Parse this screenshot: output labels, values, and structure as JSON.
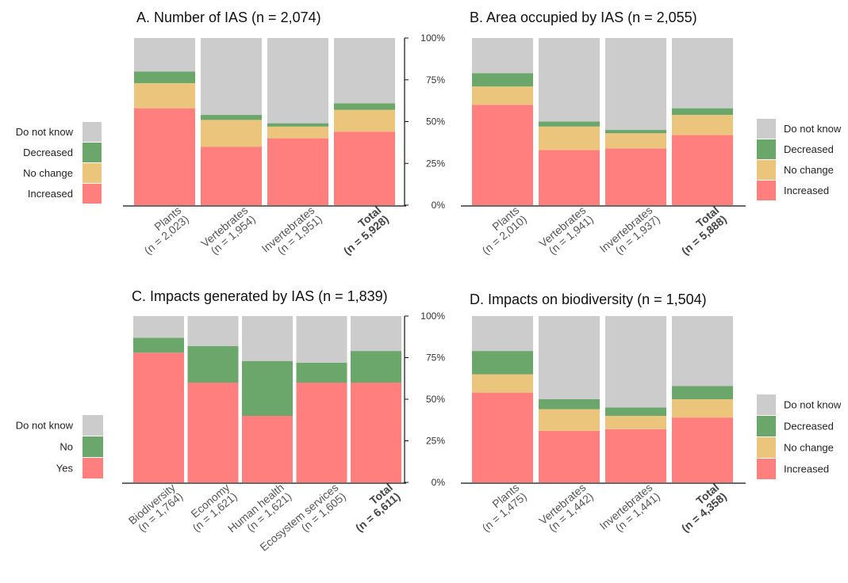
{
  "colors": {
    "Increased": "#ff7f7f",
    "No change": "#ecc57d",
    "Decreased": "#6ba76b",
    "Do not know": "#cccccc",
    "Yes": "#ff7f7f",
    "No": "#6ba76b"
  },
  "y_ticks": [
    "0%",
    "25%",
    "50%",
    "75%",
    "100%"
  ],
  "chart_data": [
    {
      "id": "A",
      "type": "bar",
      "stacked": true,
      "title": "A. Number of IAS (n = 2,074)",
      "categories": [
        "Plants\n(n = 2,023)",
        "Vertebrates\n(n = 1,954)",
        "Invertebrates\n(n = 1,951)",
        "Total\n(n = 5,928)"
      ],
      "bold_last": true,
      "ylim": [
        0,
        100
      ],
      "legend_position": "left",
      "series": [
        {
          "name": "Increased",
          "values": [
            58,
            35,
            40,
            44
          ]
        },
        {
          "name": "No change",
          "values": [
            15,
            16,
            7,
            13
          ]
        },
        {
          "name": "Decreased",
          "values": [
            7,
            3,
            2,
            4
          ]
        },
        {
          "name": "Do not know",
          "values": [
            20,
            46,
            51,
            39
          ]
        }
      ]
    },
    {
      "id": "B",
      "type": "bar",
      "stacked": true,
      "title": "B. Area occupied by IAS (n = 2,055)",
      "categories": [
        "Plants\n(n = 2,010)",
        "Vertebrates\n(n = 1,941)",
        "Invertebrates\n(n = 1,937)",
        "Total\n(n = 5,888)"
      ],
      "bold_last": true,
      "ylim": [
        0,
        100
      ],
      "legend_position": "right",
      "series": [
        {
          "name": "Increased",
          "values": [
            60,
            33,
            34,
            42
          ]
        },
        {
          "name": "No change",
          "values": [
            11,
            14,
            9,
            12
          ]
        },
        {
          "name": "Decreased",
          "values": [
            8,
            3,
            2,
            4
          ]
        },
        {
          "name": "Do not know",
          "values": [
            21,
            50,
            55,
            42
          ]
        }
      ]
    },
    {
      "id": "C",
      "type": "bar",
      "stacked": true,
      "title": "C. Impacts generated by IAS (n = 1,839)",
      "categories": [
        "Biodiversity\n(n = 1,764)",
        "Economy\n(n = 1,621)",
        "Human health\n(n = 1,621)",
        "Ecosystem services\n(n = 1,605)",
        "Total\n(n = 6,611)"
      ],
      "bold_last": true,
      "ylim": [
        0,
        100
      ],
      "legend_position": "left",
      "series": [
        {
          "name": "Yes",
          "values": [
            78,
            60,
            40,
            60,
            60
          ]
        },
        {
          "name": "No",
          "values": [
            9,
            22,
            33,
            12,
            19
          ]
        },
        {
          "name": "Do not know",
          "values": [
            13,
            18,
            27,
            28,
            21
          ]
        }
      ]
    },
    {
      "id": "D",
      "type": "bar",
      "stacked": true,
      "title": "D. Impacts on biodiversity (n = 1,504)",
      "categories": [
        "Plants\n(n = 1,475)",
        "Vertebrates\n(n = 1,442)",
        "Invertebrates\n(n = 1,441)",
        "Total\n(n = 4,358)"
      ],
      "bold_last": true,
      "ylim": [
        0,
        100
      ],
      "legend_position": "right",
      "series": [
        {
          "name": "Increased",
          "values": [
            54,
            31,
            32,
            39
          ]
        },
        {
          "name": "No change",
          "values": [
            11,
            13,
            8,
            11
          ]
        },
        {
          "name": "Decreased",
          "values": [
            14,
            6,
            5,
            8
          ]
        },
        {
          "name": "Do not know",
          "values": [
            21,
            50,
            55,
            42
          ]
        }
      ]
    }
  ]
}
